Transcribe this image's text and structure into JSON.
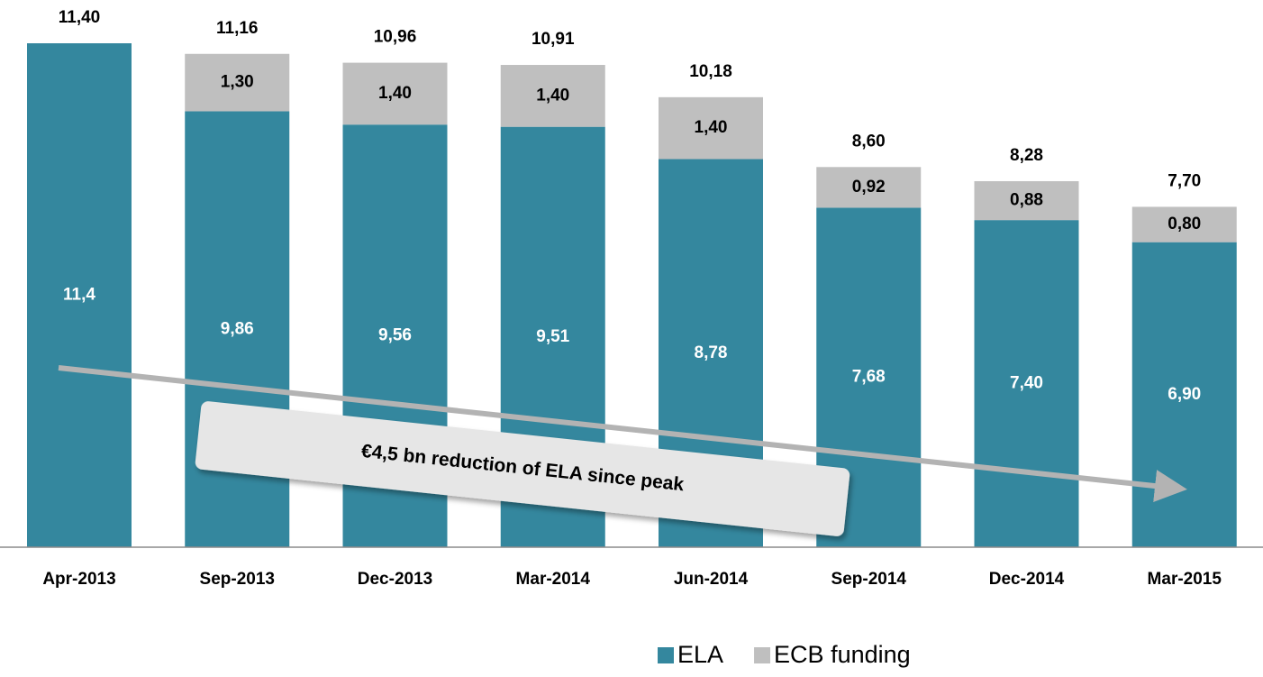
{
  "chart_data": {
    "type": "bar",
    "stacked": true,
    "categories": [
      "Apr-2013",
      "Sep-2013",
      "Dec-2013",
      "Mar-2014",
      "Jun-2014",
      "Sep-2014",
      "Dec-2014",
      "Mar-2015"
    ],
    "series": [
      {
        "name": "ELA",
        "color": "#34879e",
        "values": [
          11.4,
          9.86,
          9.56,
          9.51,
          8.78,
          7.68,
          7.4,
          6.9
        ],
        "value_labels": [
          "11,4",
          "9,86",
          "9,56",
          "9,51",
          "8,78",
          "7,68",
          "7,40",
          "6,90"
        ]
      },
      {
        "name": "ECB funding",
        "color": "#bfbfbf",
        "values": [
          null,
          1.3,
          1.4,
          1.4,
          1.4,
          0.92,
          0.88,
          0.8
        ],
        "value_labels": [
          null,
          "1,30",
          "1,40",
          "1,40",
          "1,40",
          "0,92",
          "0,88",
          "0,80"
        ]
      }
    ],
    "totals": [
      11.4,
      11.16,
      10.96,
      10.91,
      10.18,
      8.6,
      8.28,
      7.7
    ],
    "total_labels": [
      "11,40",
      "11,16",
      "10,96",
      "10,91",
      "10,18",
      "8,60",
      "8,28",
      "7,70"
    ],
    "annotation": "€4,5 bn reduction of ELA since peak"
  }
}
